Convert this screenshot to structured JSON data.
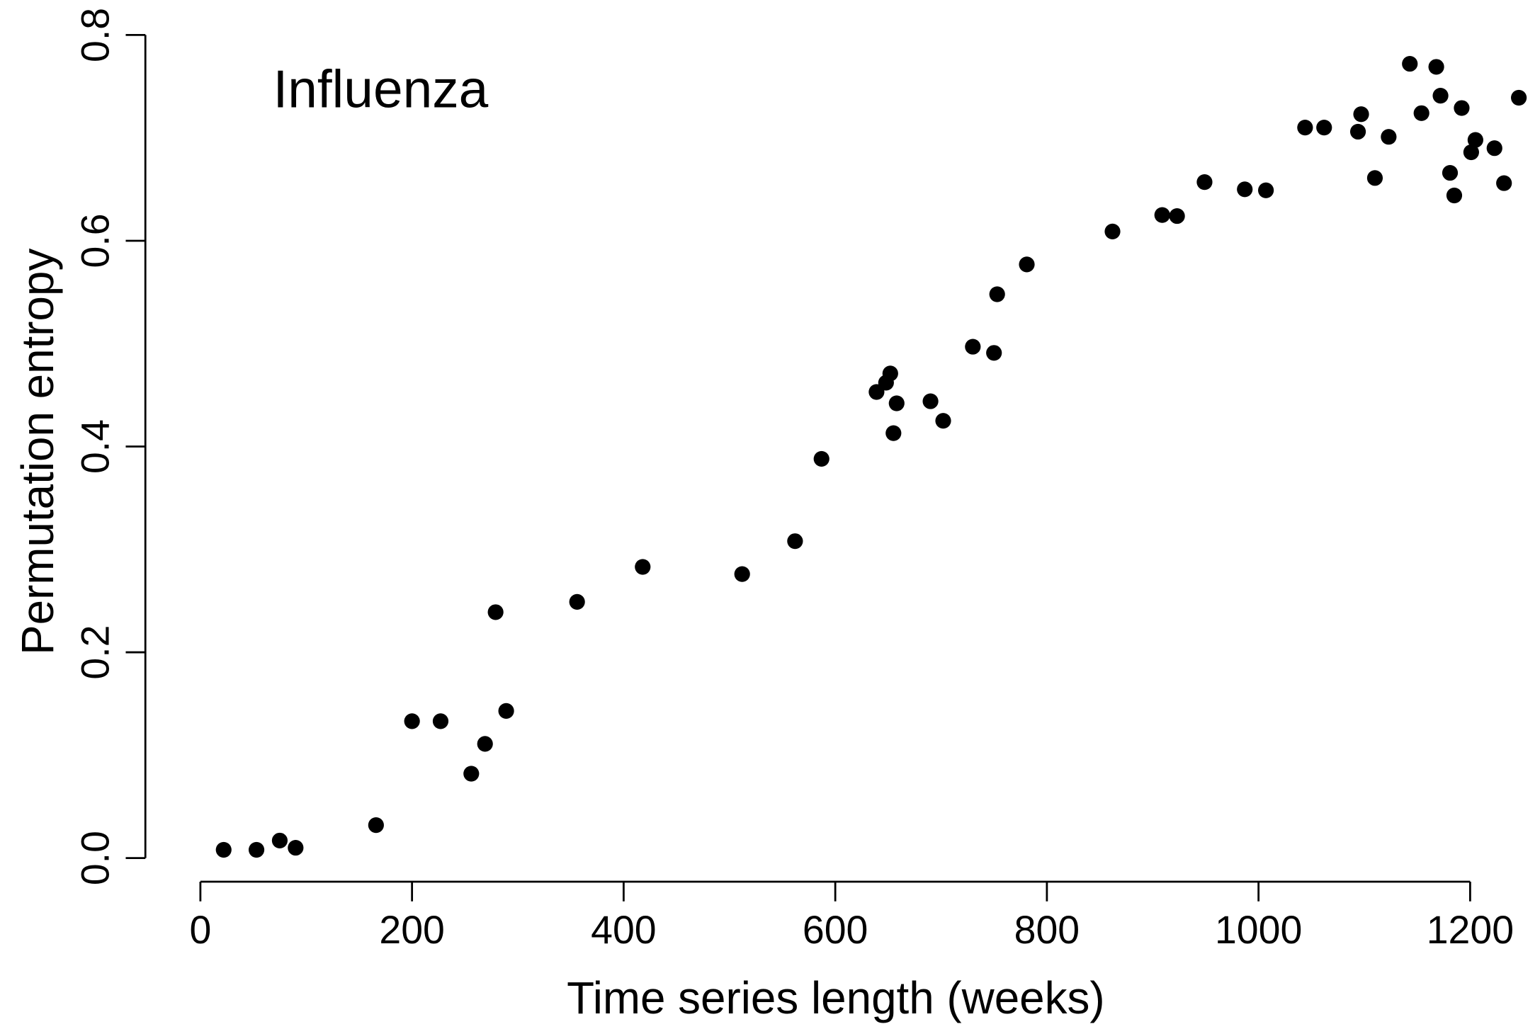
{
  "chart_data": {
    "type": "scatter",
    "x_label": "Time series length (weeks)",
    "y_label": "Permutation entropy",
    "annotation": "Influenza",
    "color": "#000000",
    "xlim": [
      -52,
      1266
    ],
    "ylim": [
      -0.023,
      0.834
    ],
    "xticks": [
      0,
      200,
      400,
      600,
      800,
      1000,
      1200
    ],
    "yticks": [
      {
        "value": 0,
        "label": "0.0"
      },
      0.2,
      0.4,
      0.6,
      0.8
    ],
    "grid": false,
    "series": [
      {
        "name": null,
        "color": "#000000",
        "x": [
          22,
          53,
          75,
          90,
          166,
          200,
          227,
          256,
          269,
          279,
          289,
          356,
          418,
          512,
          562,
          587,
          639,
          648,
          652,
          658,
          655,
          690,
          702,
          730,
          750,
          753,
          781,
          862,
          909,
          923,
          949,
          987,
          1007,
          1044,
          1062,
          1094,
          1097,
          1110,
          1123,
          1143,
          1154,
          1168,
          1172,
          1181,
          1185,
          1192,
          1201,
          1205,
          1223,
          1232,
          1246
        ],
        "values": [
          0.008,
          0.008,
          0.017,
          0.01,
          0.032,
          0.133,
          0.133,
          0.082,
          0.111,
          0.239,
          0.143,
          0.249,
          0.283,
          0.276,
          0.308,
          0.388,
          0.453,
          0.462,
          0.471,
          0.442,
          0.413,
          0.444,
          0.425,
          0.497,
          0.491,
          0.548,
          0.577,
          0.609,
          0.625,
          0.624,
          0.657,
          0.65,
          0.649,
          0.71,
          0.71,
          0.706,
          0.723,
          0.661,
          0.701,
          0.772,
          0.724,
          0.769,
          0.741,
          0.666,
          0.644,
          0.729,
          0.686,
          0.698,
          0.69,
          0.656,
          0.739
        ]
      }
    ]
  }
}
